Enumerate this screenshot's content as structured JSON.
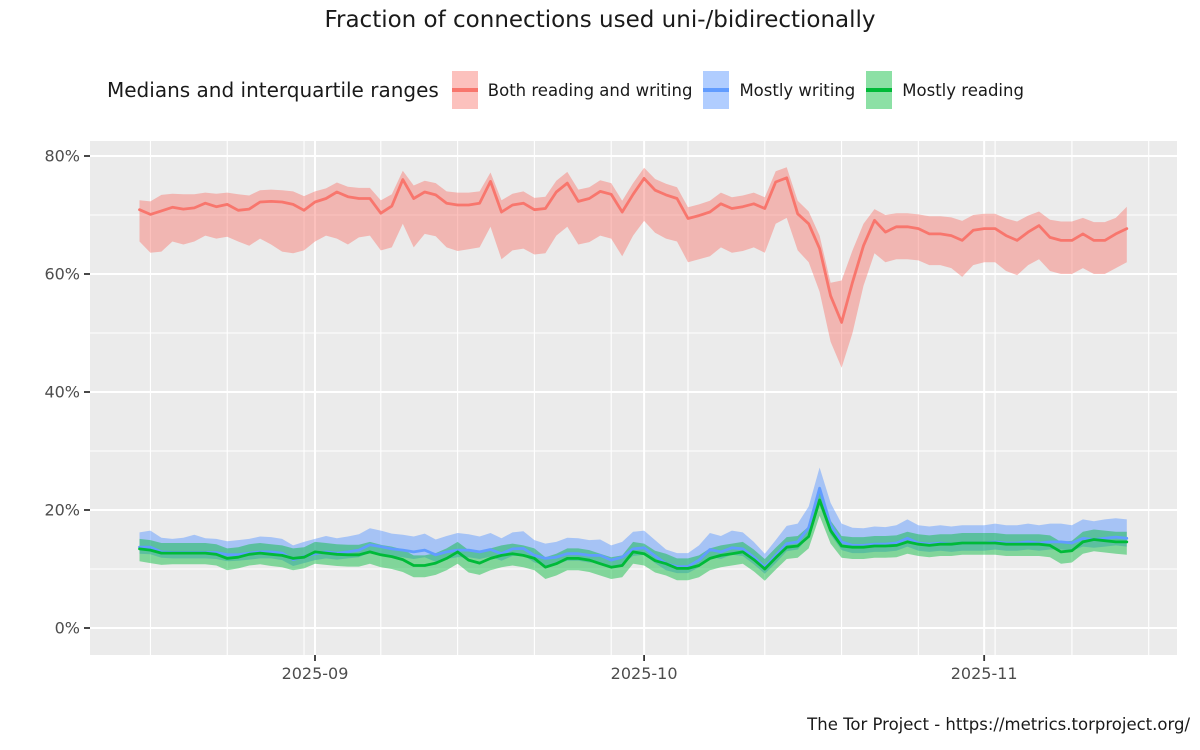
{
  "title": "Fraction of connections used uni-/bidirectionally",
  "legend": {
    "label": "Medians and interquartile ranges",
    "items": [
      {
        "name": "Both reading and writing",
        "color": "#F8766D",
        "fill": "rgba(248,118,109,0.45)"
      },
      {
        "name": "Mostly writing",
        "color": "#619CFF",
        "fill": "rgba(97,156,255,0.5)"
      },
      {
        "name": "Mostly reading",
        "color": "#00BA38",
        "fill": "rgba(0,186,56,0.45)"
      }
    ]
  },
  "footer": "The Tor Project - https://metrics.torproject.org/",
  "panel": {
    "bg": "#EBEBEB",
    "grid": "#FFFFFF",
    "tick_color": "#333333",
    "tick_label_color": "#4d4d4d"
  },
  "chart_data": {
    "type": "line",
    "title": "Fraction of connections used uni-/bidirectionally",
    "subtitle": "Medians and interquartile ranges",
    "x_start_date": "2025-08-16",
    "x_end_date": "2025-11-14",
    "x_tick_labels": [
      "2025-09",
      "2025-10",
      "2025-11"
    ],
    "x_tick_days": [
      16,
      46,
      77
    ],
    "x_minor_days": [
      1,
      8,
      15,
      22,
      29,
      36,
      43,
      50,
      57,
      64,
      71,
      78,
      85,
      92
    ],
    "y_tick_labels": [
      "0%",
      "20%",
      "40%",
      "60%",
      "80%"
    ],
    "y_ticks": [
      0,
      20,
      40,
      60,
      80
    ],
    "y_minor": [
      10,
      30,
      50,
      70
    ],
    "ylim": [
      0,
      80
    ],
    "grid": true,
    "legend_position": "top",
    "series": [
      {
        "name": "Both reading and writing",
        "color": "#F8766D",
        "fill": "rgba(248,118,109,0.45)",
        "median": [
          70.9,
          70.1,
          70.7,
          71.3,
          71.0,
          71.2,
          72.0,
          71.4,
          71.8,
          70.8,
          71.0,
          72.2,
          72.3,
          72.2,
          71.8,
          70.8,
          72.2,
          72.8,
          73.9,
          73.1,
          72.8,
          72.8,
          70.3,
          71.5,
          76.0,
          72.8,
          73.9,
          73.4,
          72.0,
          71.7,
          71.7,
          72.0,
          75.7,
          70.5,
          71.7,
          72.0,
          70.9,
          71.1,
          73.9,
          75.4,
          72.3,
          72.8,
          74.0,
          73.5,
          70.5,
          73.5,
          76.2,
          74.2,
          73.4,
          72.8,
          69.4,
          69.9,
          70.5,
          71.9,
          71.1,
          71.4,
          71.9,
          71.1,
          75.6,
          76.3,
          70.2,
          68.5,
          64.3,
          56.3,
          51.8,
          58.6,
          64.8,
          69.1,
          67.1,
          68.0,
          68.0,
          67.7,
          66.8,
          66.8,
          66.5,
          65.7,
          67.4,
          67.7,
          67.7,
          66.5,
          65.7,
          67.1,
          68.2,
          66.2,
          65.7,
          65.7,
          66.8,
          65.7,
          65.7,
          66.8,
          67.7
        ],
        "lower": [
          65.5,
          63.6,
          63.8,
          65.5,
          65.0,
          65.5,
          66.5,
          66.0,
          66.3,
          65.5,
          64.8,
          66.0,
          65.0,
          63.8,
          63.5,
          64.0,
          65.5,
          66.5,
          66.0,
          65.0,
          66.2,
          66.5,
          64.0,
          64.5,
          68.5,
          64.5,
          66.8,
          66.4,
          64.5,
          63.9,
          64.2,
          64.5,
          68.0,
          62.5,
          64.0,
          64.3,
          63.3,
          63.5,
          66.5,
          68.0,
          65.0,
          65.4,
          66.5,
          66.0,
          63.0,
          66.5,
          69.0,
          67.0,
          66.0,
          65.5,
          62.0,
          62.5,
          63.0,
          64.5,
          63.6,
          63.9,
          64.5,
          63.6,
          68.5,
          69.5,
          64.0,
          62.0,
          57.0,
          48.5,
          44.1,
          50.0,
          58.0,
          63.5,
          62.0,
          62.5,
          62.5,
          62.3,
          61.5,
          61.5,
          61.0,
          59.5,
          61.5,
          62.0,
          62.0,
          60.5,
          59.8,
          61.5,
          62.5,
          60.5,
          60.0,
          60.0,
          61.0,
          60.0,
          60.0,
          61.0,
          62.0
        ],
        "upper": [
          72.5,
          72.3,
          73.4,
          73.6,
          73.5,
          73.5,
          73.8,
          73.6,
          73.8,
          73.5,
          73.3,
          74.2,
          74.3,
          74.2,
          74.0,
          73.2,
          74.0,
          74.5,
          75.5,
          74.8,
          74.6,
          74.6,
          72.5,
          73.5,
          77.5,
          75.0,
          75.8,
          75.4,
          74.0,
          73.8,
          73.8,
          74.0,
          77.2,
          72.5,
          73.6,
          74.0,
          72.9,
          73.1,
          75.8,
          77.3,
          74.3,
          74.7,
          75.9,
          75.4,
          72.4,
          75.4,
          78.0,
          76.1,
          75.3,
          74.7,
          71.3,
          71.8,
          72.4,
          73.8,
          73.0,
          73.3,
          73.8,
          73.0,
          77.4,
          78.1,
          72.4,
          70.6,
          66.5,
          58.5,
          58.9,
          64.0,
          68.5,
          71.0,
          70.0,
          70.3,
          70.3,
          70.1,
          69.8,
          69.8,
          69.6,
          69.0,
          70.0,
          70.2,
          70.2,
          69.4,
          68.9,
          69.9,
          70.6,
          69.2,
          68.9,
          68.9,
          69.5,
          68.8,
          68.8,
          69.5,
          71.4
        ]
      },
      {
        "name": "Mostly writing",
        "color": "#619CFF",
        "fill": "rgba(97,156,255,0.5)",
        "median": [
          13.7,
          13.7,
          12.9,
          12.8,
          12.8,
          12.8,
          12.8,
          12.8,
          12.4,
          12.4,
          12.7,
          12.9,
          12.9,
          12.7,
          11.6,
          12.1,
          12.6,
          12.9,
          12.7,
          12.9,
          13.2,
          14.1,
          13.8,
          13.4,
          13.2,
          12.9,
          13.2,
          12.4,
          12.9,
          13.2,
          13.2,
          12.9,
          13.3,
          12.6,
          13.4,
          13.5,
          12.3,
          11.8,
          12.0,
          12.6,
          12.6,
          12.3,
          12.3,
          11.5,
          12.0,
          13.4,
          13.6,
          12.2,
          10.9,
          10.4,
          10.4,
          11.5,
          13.3,
          12.9,
          13.6,
          13.4,
          12.0,
          10.3,
          12.3,
          14.3,
          14.6,
          17.0,
          23.7,
          17.5,
          14.6,
          14.0,
          14.0,
          14.2,
          14.2,
          14.4,
          15.2,
          14.4,
          14.2,
          14.4,
          14.2,
          14.4,
          14.4,
          14.4,
          14.6,
          14.4,
          14.4,
          14.6,
          14.4,
          14.6,
          14.6,
          14.4,
          15.2,
          15.0,
          15.2,
          15.4,
          15.2
        ],
        "lower": [
          12.6,
          12.5,
          11.9,
          11.8,
          11.8,
          11.8,
          11.8,
          11.7,
          11.3,
          11.4,
          11.6,
          11.8,
          11.8,
          11.5,
          10.5,
          11.0,
          11.5,
          11.8,
          11.6,
          11.8,
          12.0,
          12.8,
          12.6,
          12.2,
          12.0,
          11.7,
          12.0,
          11.2,
          11.7,
          12.0,
          12.0,
          11.7,
          12.1,
          11.4,
          12.2,
          12.3,
          11.1,
          10.6,
          10.8,
          11.4,
          11.4,
          11.1,
          11.1,
          10.3,
          10.8,
          12.2,
          12.4,
          11.0,
          9.8,
          9.3,
          9.3,
          10.3,
          12.1,
          11.7,
          12.4,
          12.2,
          10.8,
          9.2,
          11.0,
          13.0,
          13.3,
          15.4,
          20.8,
          15.8,
          13.2,
          12.7,
          12.7,
          12.9,
          12.9,
          13.1,
          13.8,
          13.1,
          12.9,
          13.1,
          12.9,
          13.1,
          13.1,
          13.1,
          13.3,
          13.1,
          13.1,
          13.3,
          13.1,
          13.3,
          13.3,
          13.1,
          13.8,
          13.6,
          13.8,
          14.0,
          13.8
        ],
        "upper": [
          16.2,
          16.5,
          15.3,
          15.1,
          15.3,
          15.8,
          15.2,
          15.1,
          14.7,
          14.9,
          15.1,
          15.5,
          15.4,
          15.1,
          14.0,
          14.6,
          15.1,
          15.6,
          15.2,
          15.5,
          15.9,
          16.9,
          16.5,
          16.0,
          15.8,
          15.5,
          16.0,
          15.0,
          15.6,
          16.1,
          15.9,
          15.5,
          16.1,
          15.2,
          16.2,
          16.4,
          14.9,
          14.3,
          14.6,
          15.3,
          15.2,
          14.9,
          15.0,
          14.0,
          14.6,
          16.3,
          16.5,
          14.9,
          13.3,
          12.7,
          12.7,
          14.0,
          16.1,
          15.6,
          16.5,
          16.2,
          14.6,
          12.6,
          14.9,
          17.3,
          17.7,
          20.6,
          27.2,
          21.2,
          17.7,
          17.0,
          16.9,
          17.2,
          17.1,
          17.4,
          18.4,
          17.4,
          17.2,
          17.4,
          17.2,
          17.4,
          17.4,
          17.4,
          17.7,
          17.4,
          17.4,
          17.7,
          17.4,
          17.7,
          17.7,
          17.4,
          18.4,
          18.1,
          18.4,
          18.6,
          18.4
        ]
      },
      {
        "name": "Mostly reading",
        "color": "#00BA38",
        "fill": "rgba(0,186,56,0.45)",
        "median": [
          13.4,
          13.2,
          12.7,
          12.7,
          12.7,
          12.7,
          12.7,
          12.5,
          11.8,
          12.0,
          12.5,
          12.7,
          12.5,
          12.3,
          11.8,
          12.0,
          12.9,
          12.7,
          12.5,
          12.4,
          12.4,
          12.9,
          12.4,
          12.1,
          11.6,
          10.6,
          10.6,
          11.0,
          11.8,
          12.9,
          11.5,
          11.0,
          11.8,
          12.3,
          12.6,
          12.3,
          11.8,
          10.3,
          10.9,
          11.8,
          11.8,
          11.5,
          10.9,
          10.3,
          10.6,
          12.9,
          12.6,
          11.4,
          10.9,
          10.1,
          10.1,
          10.6,
          11.8,
          12.3,
          12.6,
          12.9,
          11.6,
          10.0,
          11.9,
          13.7,
          13.9,
          15.5,
          21.7,
          16.5,
          13.9,
          13.7,
          13.7,
          13.9,
          13.9,
          14.0,
          14.6,
          14.2,
          14.0,
          14.2,
          14.2,
          14.4,
          14.4,
          14.4,
          14.4,
          14.2,
          14.2,
          14.2,
          14.2,
          14.0,
          12.9,
          13.1,
          14.6,
          15.0,
          14.8,
          14.6,
          14.6
        ],
        "lower": [
          11.3,
          11.0,
          10.7,
          10.8,
          10.8,
          10.8,
          10.8,
          10.6,
          9.8,
          10.1,
          10.6,
          10.8,
          10.5,
          10.3,
          9.8,
          10.1,
          10.9,
          10.7,
          10.5,
          10.4,
          10.4,
          10.9,
          10.3,
          10.0,
          9.5,
          8.6,
          8.6,
          9.0,
          9.8,
          10.9,
          9.4,
          9.0,
          9.8,
          10.3,
          10.6,
          10.3,
          9.8,
          8.3,
          8.9,
          9.8,
          9.8,
          9.5,
          8.9,
          8.3,
          8.6,
          10.9,
          10.6,
          9.4,
          8.9,
          8.1,
          8.1,
          8.6,
          9.8,
          10.3,
          10.6,
          10.9,
          9.6,
          8.0,
          9.9,
          11.7,
          11.9,
          13.5,
          19.0,
          14.3,
          11.9,
          11.7,
          11.7,
          11.9,
          11.9,
          12.0,
          12.6,
          12.2,
          12.0,
          12.2,
          12.2,
          12.4,
          12.4,
          12.4,
          12.4,
          12.2,
          12.2,
          12.2,
          12.2,
          12.0,
          10.9,
          11.1,
          12.6,
          13.0,
          12.8,
          12.6,
          12.4
        ],
        "upper": [
          15.1,
          14.9,
          14.4,
          14.4,
          14.4,
          14.4,
          14.4,
          14.2,
          13.5,
          13.7,
          14.2,
          14.4,
          14.2,
          14.0,
          13.5,
          13.7,
          14.6,
          14.4,
          14.2,
          14.1,
          14.1,
          14.6,
          14.1,
          13.8,
          13.3,
          12.3,
          12.3,
          12.7,
          13.5,
          14.6,
          13.2,
          12.7,
          13.5,
          14.0,
          14.3,
          14.0,
          13.5,
          12.0,
          12.6,
          13.5,
          13.5,
          13.2,
          12.6,
          12.0,
          12.3,
          14.6,
          14.3,
          13.1,
          12.6,
          11.8,
          11.8,
          12.3,
          13.5,
          14.0,
          14.3,
          14.6,
          13.3,
          11.7,
          13.6,
          15.4,
          15.6,
          17.2,
          23.4,
          18.2,
          15.6,
          15.4,
          15.4,
          15.6,
          15.6,
          15.7,
          16.3,
          15.9,
          15.7,
          15.9,
          15.9,
          16.1,
          16.1,
          16.1,
          16.1,
          15.9,
          15.9,
          15.9,
          15.9,
          15.7,
          14.6,
          14.8,
          16.3,
          16.7,
          16.5,
          16.3,
          16.3
        ]
      }
    ]
  }
}
